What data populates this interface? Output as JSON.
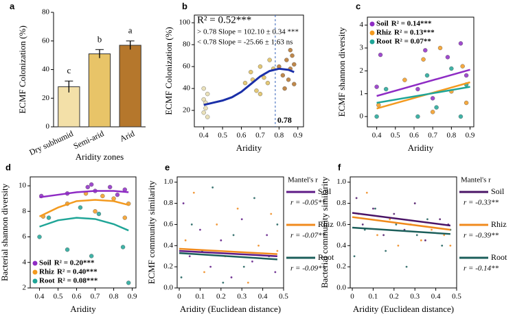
{
  "chart_data": [
    {
      "type": "bar",
      "panel": "a",
      "ylabel": "ECMF Colonization (%)",
      "xlabel": "Aridity zones",
      "categories": [
        "Dry subhumid",
        "Semi-arid",
        "Arid"
      ],
      "values": [
        28,
        51,
        57
      ],
      "errors": [
        4,
        3,
        3
      ],
      "significance": [
        "c",
        "b",
        "a"
      ],
      "colors": [
        "#f3e0a8",
        "#e8c468",
        "#b5772c"
      ],
      "ylim": [
        0,
        80
      ],
      "yticks": [
        0,
        20,
        40,
        60,
        80
      ],
      "frame": false
    },
    {
      "type": "scatter",
      "panel": "b",
      "ylabel": "ECMF Colonization (%)",
      "xlabel": "Aridity",
      "xlim": [
        0.35,
        0.93
      ],
      "xticks": [
        0.4,
        0.5,
        0.6,
        0.7,
        0.8,
        0.9
      ],
      "ylim": [
        5,
        107
      ],
      "yticks": [
        20,
        40,
        60,
        80,
        100
      ],
      "frame": true,
      "annotations": [
        {
          "text": "R² = 0.52***",
          "color": "#000000"
        },
        {
          "text": "> 0.78 Slope = 102.10 ± 0.34 ***",
          "color": "#2f5fb8"
        },
        {
          "text": "< 0.78 Slope = -25.66 ± 1.63 ns",
          "color": "#2f5fb8"
        }
      ],
      "vline": 0.78,
      "vline_color": "#2f5fb8",
      "series": [
        {
          "color": "#e6dcae",
          "x": [
            0.4,
            0.41,
            0.4,
            0.42,
            0.41,
            0.4,
            0.42
          ],
          "values": [
            30,
            22,
            18,
            35,
            27,
            40,
            14
          ]
        },
        {
          "color": "#dfbe5e",
          "x": [
            0.62,
            0.65,
            0.68,
            0.7,
            0.72,
            0.75,
            0.74,
            0.77,
            0.66,
            0.7
          ],
          "values": [
            45,
            55,
            38,
            60,
            50,
            66,
            45,
            58,
            48,
            35
          ]
        },
        {
          "color": "#b4732b",
          "x": [
            0.8,
            0.82,
            0.84,
            0.85,
            0.86,
            0.87,
            0.88,
            0.86,
            0.83,
            0.88
          ],
          "values": [
            60,
            52,
            66,
            48,
            58,
            70,
            44,
            75,
            40,
            62
          ]
        },
        {
          "color": "#1a2fa8",
          "fit_x": [
            0.4,
            0.45,
            0.5,
            0.55,
            0.6,
            0.65,
            0.7,
            0.75,
            0.8,
            0.85,
            0.88
          ],
          "fit_values": [
            25,
            27,
            29,
            32,
            37,
            44,
            51,
            56,
            58,
            57,
            55
          ]
        }
      ]
    },
    {
      "type": "scatter",
      "panel": "c",
      "ylabel": "ECMF shannon diversity",
      "xlabel": "Aridity",
      "xlim": [
        0.35,
        0.92
      ],
      "xticks": [
        0.4,
        0.5,
        0.6,
        0.7,
        0.8,
        0.9
      ],
      "ylim": [
        -0.45,
        4.35
      ],
      "yticks": [
        0,
        1,
        2,
        3,
        4
      ],
      "frame": true,
      "legend": "upper left",
      "series": [
        {
          "name": "Soil",
          "label": "R² = 0.14***",
          "color": "#8e2bc4",
          "x": [
            0.4,
            0.42,
            0.62,
            0.66,
            0.7,
            0.78,
            0.85,
            0.88
          ],
          "values": [
            1.3,
            2.7,
            1.2,
            2.9,
            0.8,
            2.6,
            3.2,
            1.8
          ],
          "fit_x": [
            0.4,
            0.9
          ],
          "fit_values": [
            0.9,
            2.05
          ]
        },
        {
          "name": "Rhiz",
          "label": "R² = 0.13***",
          "color": "#f39a1f",
          "x": [
            0.41,
            0.55,
            0.65,
            0.7,
            0.74,
            0.8,
            0.86,
            0.88
          ],
          "values": [
            0.5,
            1.6,
            2.5,
            0.2,
            3.0,
            1.1,
            2.2,
            0.6
          ],
          "fit_x": [
            0.4,
            0.9
          ],
          "fit_values": [
            0.35,
            1.5
          ]
        },
        {
          "name": "Root",
          "label": "R² = 0.07**",
          "color": "#1fa597",
          "x": [
            0.4,
            0.45,
            0.62,
            0.67,
            0.72,
            0.8,
            0.85,
            0.88
          ],
          "values": [
            0,
            1.2,
            0,
            1.8,
            0.4,
            2.1,
            0,
            1.4
          ],
          "fit_x": [
            0.4,
            0.9
          ],
          "fit_values": [
            0.6,
            1.3
          ]
        }
      ]
    },
    {
      "type": "scatter",
      "panel": "d",
      "ylabel": "Bacterial shannon diversity",
      "xlabel": "Aridity",
      "xlim": [
        0.35,
        0.92
      ],
      "xticks": [
        0.4,
        0.5,
        0.6,
        0.7,
        0.8,
        0.9
      ],
      "ylim": [
        2,
        10.7
      ],
      "yticks": [
        2,
        4,
        6,
        8,
        10
      ],
      "frame": true,
      "legend": "lower left",
      "series": [
        {
          "name": "Soil",
          "label": "R² = 0.20***",
          "color": "#8e2bc4",
          "x": [
            0.41,
            0.55,
            0.66,
            0.7,
            0.78,
            0.86,
            0.68,
            0.82
          ],
          "values": [
            9.2,
            9.4,
            9.9,
            9.6,
            9.9,
            9.7,
            10.1,
            9.3
          ],
          "fit_x": [
            0.4,
            0.5,
            0.6,
            0.7,
            0.8,
            0.88
          ],
          "fit_values": [
            9.1,
            9.3,
            9.5,
            9.6,
            9.6,
            9.5
          ]
        },
        {
          "name": "Rhiz",
          "label": "R² = 0.40***",
          "color": "#f39a1f",
          "x": [
            0.42,
            0.55,
            0.65,
            0.7,
            0.74,
            0.8,
            0.86,
            0.88
          ],
          "values": [
            7.6,
            8.6,
            9.4,
            8.0,
            9.2,
            9.0,
            7.5,
            8.6
          ],
          "fit_x": [
            0.4,
            0.5,
            0.6,
            0.7,
            0.8,
            0.88
          ],
          "fit_values": [
            7.6,
            8.3,
            8.8,
            8.9,
            8.8,
            8.5
          ]
        },
        {
          "name": "Root",
          "label": "R² = 0.08***",
          "color": "#1fa597",
          "x": [
            0.4,
            0.45,
            0.55,
            0.62,
            0.68,
            0.72,
            0.85,
            0.88
          ],
          "values": [
            6.0,
            7.5,
            5.0,
            8.3,
            4.5,
            7.8,
            5.2,
            2.4
          ],
          "fit_x": [
            0.4,
            0.5,
            0.6,
            0.7,
            0.8,
            0.88
          ],
          "fit_values": [
            6.8,
            7.3,
            7.5,
            7.4,
            7.0,
            6.5
          ]
        }
      ]
    },
    {
      "type": "scatter",
      "panel": "e",
      "ylabel": "ECMF community similarity",
      "xlabel": "Aridity (Euclidean distance)",
      "xlim": [
        -0.01,
        0.5
      ],
      "xticks": [
        0,
        0.1,
        0.2,
        0.3,
        0.4,
        0.5
      ],
      "ylim": [
        0,
        1.05
      ],
      "yticks": [
        {
          "value": 0,
          "label": "0.0"
        },
        0.2,
        0.4,
        0.6,
        0.8,
        {
          "value": 1,
          "label": "1.0"
        }
      ],
      "frame": true,
      "legend": "right",
      "legend_title": "Mantel's r",
      "series": [
        {
          "name": "Soil",
          "label": "r = -0.05**",
          "color": "#5e1a86",
          "x": [
            0.02,
            0.05,
            0.1,
            0.15,
            0.2,
            0.25,
            0.3,
            0.35,
            0.42,
            0.46
          ],
          "values": [
            0.8,
            0.3,
            0.55,
            0.2,
            0.45,
            0.1,
            0.65,
            0.25,
            0.5,
            0.15
          ],
          "fit_x": [
            0,
            0.47
          ],
          "fit_values": [
            0.35,
            0.3
          ]
        },
        {
          "name": "Rhiz",
          "label": "r = -0.07**",
          "color": "#f08a1c",
          "x": [
            0.03,
            0.07,
            0.12,
            0.18,
            0.22,
            0.28,
            0.33,
            0.38,
            0.44,
            0.47
          ],
          "values": [
            0.45,
            0.9,
            0.15,
            0.6,
            0.3,
            0.75,
            0.05,
            0.4,
            0.7,
            0.35
          ],
          "fit_x": [
            0,
            0.47
          ],
          "fit_values": [
            0.37,
            0.32
          ]
        },
        {
          "name": "Root",
          "label": "r = -0.09**",
          "color": "#1b5e5a",
          "x": [
            0.01,
            0.06,
            0.11,
            0.16,
            0.21,
            0.26,
            0.31,
            0.36,
            0.43,
            0.47
          ],
          "values": [
            0.1,
            0.6,
            0.35,
            0.95,
            0.05,
            0.5,
            0.2,
            0.85,
            0.3,
            0.6
          ],
          "fit_x": [
            0,
            0.47
          ],
          "fit_values": [
            0.33,
            0.27
          ]
        }
      ]
    },
    {
      "type": "scatter",
      "panel": "f",
      "ylabel": "Bacterial community similarity",
      "xlabel": "Aridity (Euclidean distance)",
      "xlim": [
        -0.01,
        0.5
      ],
      "xticks": [
        0,
        0.1,
        0.2,
        0.3,
        0.4,
        0.5
      ],
      "ylim": [
        0,
        1.05
      ],
      "yticks": [
        {
          "value": 0,
          "label": "0.0"
        },
        0.2,
        0.4,
        0.6,
        0.8,
        {
          "value": 1,
          "label": "1.0"
        }
      ],
      "frame": true,
      "legend": "right",
      "legend_title": "Mantel's r",
      "series": [
        {
          "name": "Soil",
          "label": "r = -0.33**",
          "color": "#4a1466",
          "x": [
            0.02,
            0.05,
            0.1,
            0.15,
            0.2,
            0.25,
            0.3,
            0.35,
            0.42,
            0.46
          ],
          "values": [
            0.85,
            0.6,
            0.75,
            0.5,
            0.7,
            0.55,
            0.8,
            0.45,
            0.65,
            0.6
          ],
          "fit_x": [
            0,
            0.47
          ],
          "fit_values": [
            0.71,
            0.59
          ]
        },
        {
          "name": "Rhiz",
          "label": "r = -0.39**",
          "color": "#f08a1c",
          "x": [
            0.03,
            0.07,
            0.12,
            0.18,
            0.22,
            0.28,
            0.33,
            0.38,
            0.44,
            0.47
          ],
          "values": [
            0.7,
            0.9,
            0.5,
            0.65,
            0.4,
            0.6,
            0.45,
            0.55,
            0.5,
            0.4
          ],
          "fit_x": [
            0,
            0.47
          ],
          "fit_values": [
            0.67,
            0.55
          ]
        },
        {
          "name": "Root",
          "label": "r = -0.14**",
          "color": "#1b5e5a",
          "x": [
            0.01,
            0.06,
            0.11,
            0.16,
            0.21,
            0.26,
            0.31,
            0.36,
            0.43,
            0.47
          ],
          "values": [
            0.3,
            0.55,
            0.75,
            0.35,
            0.6,
            0.2,
            0.5,
            0.65,
            0.4,
            0.55
          ],
          "fit_x": [
            0,
            0.47
          ],
          "fit_values": [
            0.57,
            0.51
          ]
        }
      ]
    }
  ]
}
